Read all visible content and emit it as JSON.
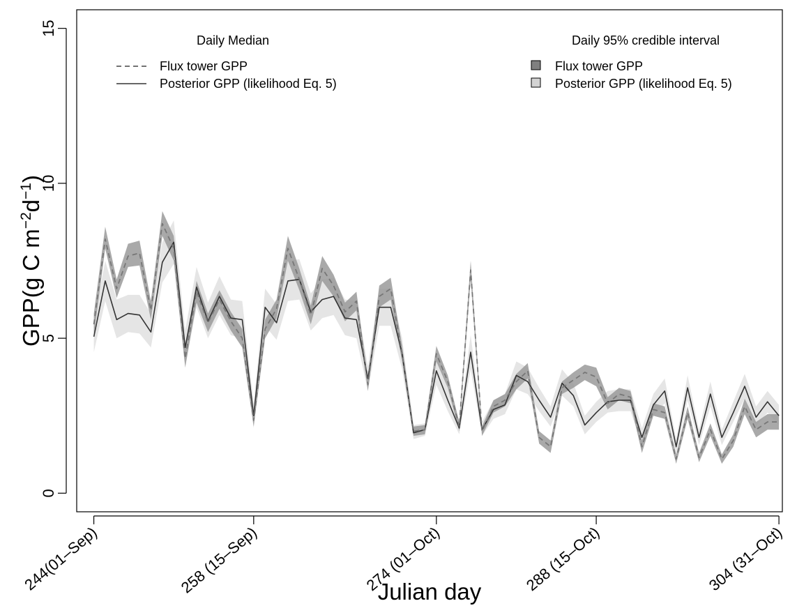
{
  "chart_data": {
    "type": "line",
    "title": "",
    "xlabel": "Julian day",
    "ylabel": "GPP(g C m−2d−1)",
    "ylabel_parts": {
      "main": "GPP(g C m",
      "sup1": "−2",
      "mid": "d",
      "sup2": "−1",
      "end": ")"
    },
    "xlim": [
      242.5,
      304.3
    ],
    "ylim": [
      -0.6,
      15.6
    ],
    "grid": false,
    "x_ticks": [
      {
        "value": 244,
        "label": "244(01–Sep)"
      },
      {
        "value": 258,
        "label": "258 (15–Sep)"
      },
      {
        "value": 274,
        "label": "274 (01–Oct)"
      },
      {
        "value": 288,
        "label": "288 (15–Oct)"
      },
      {
        "value": 304,
        "label": "304 (31–Oct)"
      }
    ],
    "y_ticks": [
      {
        "value": 0,
        "label": "0"
      },
      {
        "value": 5,
        "label": "5"
      },
      {
        "value": 10,
        "label": "10"
      },
      {
        "value": 15,
        "label": "15"
      }
    ],
    "x": [
      244,
      245,
      246,
      247,
      248,
      249,
      250,
      251,
      252,
      253,
      254,
      255,
      256,
      257,
      258,
      259,
      260,
      261,
      262,
      263,
      264,
      265,
      266,
      267,
      268,
      269,
      270,
      271,
      272,
      273,
      274,
      275,
      276,
      277,
      278,
      279,
      280,
      281,
      282,
      283,
      284,
      285,
      286,
      287,
      288,
      289,
      290,
      291,
      292,
      293,
      294,
      295,
      296,
      297,
      298,
      299,
      300,
      301,
      302,
      303,
      304
    ],
    "series": [
      {
        "name": "Flux tower GPP",
        "style": "dashed",
        "color": "#777777",
        "values": [
          5.45,
          8.2,
          6.6,
          7.65,
          7.75,
          5.9,
          8.7,
          7.9,
          4.35,
          6.5,
          5.5,
          6.25,
          5.55,
          5.0,
          2.35,
          5.3,
          5.95,
          7.9,
          6.9,
          5.75,
          7.25,
          6.7,
          5.85,
          6.2,
          3.5,
          6.35,
          6.6,
          4.5,
          2.0,
          2.05,
          4.5,
          3.6,
          2.15,
          7.2,
          2.0,
          2.8,
          3.0,
          3.6,
          3.95,
          1.8,
          1.5,
          3.4,
          3.65,
          3.9,
          3.75,
          2.9,
          3.2,
          3.1,
          1.5,
          2.7,
          2.6,
          1.1,
          2.6,
          1.15,
          2.05,
          1.1,
          1.7,
          2.8,
          2.05,
          2.3,
          2.3
        ],
        "band": [
          [
            5.1,
            5.8
          ],
          [
            7.9,
            8.6
          ],
          [
            6.3,
            6.9
          ],
          [
            7.3,
            8.05
          ],
          [
            7.35,
            8.15
          ],
          [
            5.6,
            6.2
          ],
          [
            8.3,
            9.1
          ],
          [
            7.5,
            8.3
          ],
          [
            4.05,
            4.65
          ],
          [
            6.15,
            6.85
          ],
          [
            5.2,
            5.8
          ],
          [
            5.95,
            6.55
          ],
          [
            5.25,
            5.85
          ],
          [
            4.7,
            5.3
          ],
          [
            2.15,
            2.55
          ],
          [
            5.0,
            5.6
          ],
          [
            5.65,
            6.25
          ],
          [
            7.5,
            8.3
          ],
          [
            6.55,
            7.25
          ],
          [
            5.45,
            6.05
          ],
          [
            6.85,
            7.65
          ],
          [
            6.35,
            7.05
          ],
          [
            5.55,
            6.15
          ],
          [
            5.9,
            6.5
          ],
          [
            3.3,
            3.7
          ],
          [
            6.0,
            6.7
          ],
          [
            6.25,
            6.95
          ],
          [
            4.25,
            4.75
          ],
          [
            1.85,
            2.15
          ],
          [
            1.9,
            2.2
          ],
          [
            4.25,
            4.75
          ],
          [
            3.4,
            3.8
          ],
          [
            2.0,
            2.3
          ],
          [
            6.9,
            7.5
          ],
          [
            1.85,
            2.15
          ],
          [
            2.6,
            3.0
          ],
          [
            2.8,
            3.2
          ],
          [
            3.35,
            3.85
          ],
          [
            3.7,
            4.2
          ],
          [
            1.6,
            2.0
          ],
          [
            1.3,
            1.7
          ],
          [
            3.2,
            3.6
          ],
          [
            3.4,
            3.9
          ],
          [
            3.65,
            4.15
          ],
          [
            3.45,
            4.05
          ],
          [
            2.7,
            3.1
          ],
          [
            3.0,
            3.4
          ],
          [
            2.9,
            3.3
          ],
          [
            1.3,
            1.7
          ],
          [
            2.5,
            2.9
          ],
          [
            2.4,
            2.8
          ],
          [
            0.95,
            1.25
          ],
          [
            2.4,
            2.8
          ],
          [
            1.0,
            1.3
          ],
          [
            1.85,
            2.25
          ],
          [
            0.95,
            1.25
          ],
          [
            1.5,
            1.9
          ],
          [
            2.55,
            3.05
          ],
          [
            1.8,
            2.3
          ],
          [
            2.05,
            2.55
          ],
          [
            2.05,
            2.55
          ]
        ]
      },
      {
        "name": "Posterior GPP (likelihood Eq. 5)",
        "style": "solid",
        "color": "#333333",
        "values": [
          5.05,
          6.85,
          5.6,
          5.8,
          5.75,
          5.2,
          7.45,
          8.1,
          4.7,
          6.65,
          5.55,
          6.35,
          5.65,
          5.6,
          2.5,
          6.0,
          5.5,
          6.85,
          6.9,
          5.85,
          6.25,
          6.35,
          5.65,
          5.6,
          3.7,
          6.0,
          6.0,
          4.5,
          1.95,
          2.05,
          3.95,
          3.0,
          2.1,
          4.55,
          2.05,
          2.7,
          2.85,
          3.8,
          3.6,
          3.0,
          2.45,
          3.55,
          3.15,
          2.2,
          2.6,
          2.95,
          3.0,
          3.0,
          1.8,
          2.85,
          3.3,
          1.5,
          3.4,
          1.8,
          3.2,
          1.8,
          2.6,
          3.45,
          2.45,
          2.95,
          2.5
        ],
        "band": [
          [
            4.55,
            5.55
          ],
          [
            6.2,
            7.5
          ],
          [
            5.0,
            6.25
          ],
          [
            5.2,
            6.4
          ],
          [
            5.15,
            6.4
          ],
          [
            4.7,
            5.8
          ],
          [
            6.8,
            8.1
          ],
          [
            7.4,
            8.8
          ],
          [
            4.2,
            5.25
          ],
          [
            6.0,
            7.3
          ],
          [
            5.0,
            6.15
          ],
          [
            5.75,
            7.0
          ],
          [
            5.1,
            6.25
          ],
          [
            5.0,
            6.2
          ],
          [
            2.1,
            2.9
          ],
          [
            5.4,
            6.6
          ],
          [
            4.95,
            6.1
          ],
          [
            6.2,
            7.5
          ],
          [
            6.25,
            7.55
          ],
          [
            5.25,
            6.45
          ],
          [
            5.65,
            6.9
          ],
          [
            5.75,
            6.95
          ],
          [
            5.1,
            6.25
          ],
          [
            5.0,
            6.2
          ],
          [
            3.3,
            4.1
          ],
          [
            5.4,
            6.6
          ],
          [
            5.4,
            6.6
          ],
          [
            4.0,
            5.0
          ],
          [
            1.75,
            2.2
          ],
          [
            1.85,
            2.25
          ],
          [
            3.5,
            4.45
          ],
          [
            2.65,
            3.4
          ],
          [
            1.9,
            2.35
          ],
          [
            4.0,
            5.1
          ],
          [
            1.85,
            2.3
          ],
          [
            2.4,
            3.0
          ],
          [
            2.55,
            3.2
          ],
          [
            3.35,
            4.25
          ],
          [
            3.2,
            4.05
          ],
          [
            2.65,
            3.4
          ],
          [
            2.15,
            2.8
          ],
          [
            3.15,
            4.0
          ],
          [
            2.8,
            3.55
          ],
          [
            1.9,
            2.5
          ],
          [
            2.3,
            2.95
          ],
          [
            2.6,
            3.3
          ],
          [
            2.65,
            3.35
          ],
          [
            2.65,
            3.35
          ],
          [
            1.55,
            2.1
          ],
          [
            2.5,
            3.2
          ],
          [
            2.9,
            3.7
          ],
          [
            1.3,
            1.75
          ],
          [
            3.0,
            3.8
          ],
          [
            1.55,
            2.05
          ],
          [
            2.8,
            3.6
          ],
          [
            1.55,
            2.05
          ],
          [
            2.3,
            2.95
          ],
          [
            3.05,
            3.85
          ],
          [
            2.15,
            2.8
          ],
          [
            2.6,
            3.3
          ],
          [
            2.2,
            2.85
          ]
        ]
      }
    ],
    "legend": {
      "placement": "top",
      "left_title": "Daily Median",
      "left_entries": [
        {
          "label": "Flux tower GPP",
          "style": "dashed"
        },
        {
          "label": "Posterior GPP (likelihood Eq. 5)",
          "style": "solid"
        }
      ],
      "right_title": "Daily 95% credible interval",
      "right_entries": [
        {
          "label": "Flux tower GPP",
          "fill": "#808080"
        },
        {
          "label": "Posterior GPP (likelihood Eq. 5)",
          "fill": "#d3d3d3"
        }
      ]
    },
    "colors": {
      "flux_band": "#9a9a9a",
      "posterior_band": "#dcdcdc",
      "flux_line": "#777777",
      "posterior_line": "#333333"
    }
  }
}
